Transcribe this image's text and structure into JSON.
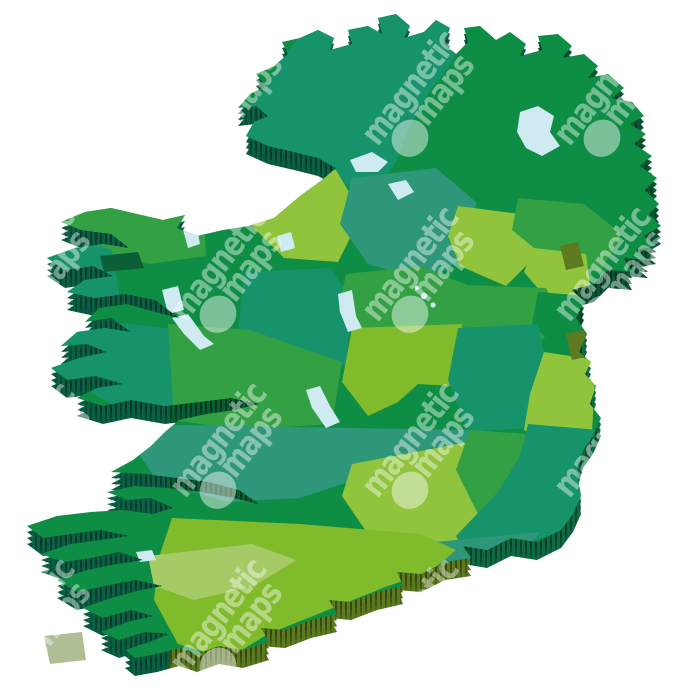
{
  "page": {
    "background": "#FFFFFF"
  },
  "watermark": {
    "line1": "magnetic",
    "line2": "maps",
    "color": "#FFFFFF",
    "text_opacity": 0.42,
    "dot_opacity": 0.45,
    "rotation_deg": -52,
    "grid": {
      "cols": [
        64,
        256,
        448,
        640
      ],
      "rows": [
        88,
        264,
        440,
        616
      ]
    }
  },
  "map": {
    "palette": {
      "kelly": "#0E8D45",
      "medium": "#33A044",
      "teal": "#17936B",
      "teal_muted": "#2E9679",
      "lime": "#80BB2C",
      "lime_light": "#8FC43C",
      "sage": "#A6CB66",
      "lake": "#CFEAF1",
      "side_teal": "#0A6044",
      "side_forest": "#0A5C32",
      "side_dark": "#0A5534",
      "side_sea": "#0E6A42",
      "side_olive": "#5C7A1E",
      "ridge_olive": "#5E7A20",
      "ridge_dark": "#0B5E35",
      "sage_block": "#AFBE95",
      "background": "#FFFFFF"
    }
  }
}
